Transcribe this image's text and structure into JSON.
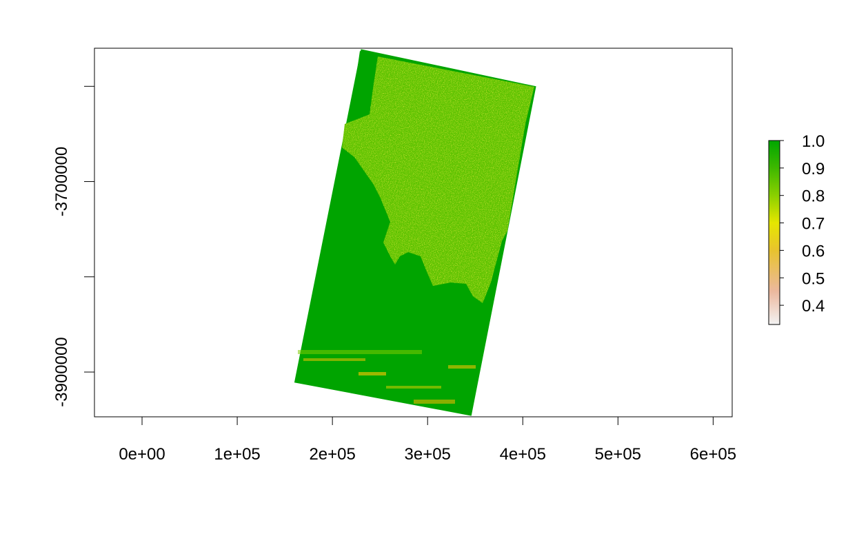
{
  "chart_data": {
    "type": "heatmap",
    "title": "",
    "xlabel": "",
    "ylabel": "",
    "xlim": [
      -50000,
      620000
    ],
    "ylim": [
      -3947000,
      -3560000
    ],
    "x_ticks": [
      0,
      100000,
      200000,
      300000,
      400000,
      500000,
      600000
    ],
    "x_tick_labels": [
      "0e+00",
      "1e+05",
      "2e+05",
      "3e+05",
      "4e+05",
      "5e+05",
      "6e+05"
    ],
    "y_ticks": [
      -3600000,
      -3700000,
      -3800000,
      -3900000
    ],
    "y_tick_labels": [
      "",
      "-3700000",
      "",
      "-3900000"
    ],
    "raster_footprint": {
      "corners": [
        {
          "x": 230000,
          "y": -3561000
        },
        {
          "x": 414000,
          "y": -3600000
        },
        {
          "x": 346000,
          "y": -3946000
        },
        {
          "x": 160000,
          "y": -3911000
        }
      ]
    },
    "legend": {
      "placement": "right",
      "min": 0.33,
      "max": 1.0,
      "ticks": [
        1.0,
        0.9,
        0.8,
        0.7,
        0.6,
        0.5,
        0.4
      ],
      "tick_labels": [
        "1.0",
        "0.9",
        "0.8",
        "0.7",
        "0.6",
        "0.5",
        "0.4"
      ],
      "colors": [
        {
          "value": 0.33,
          "color": "#f2f2f2"
        },
        {
          "value": 0.45,
          "color": "#ecb89e"
        },
        {
          "value": 0.6,
          "color": "#e8c32e"
        },
        {
          "value": 0.7,
          "color": "#e6e600"
        },
        {
          "value": 0.8,
          "color": "#8bd000"
        },
        {
          "value": 0.9,
          "color": "#3eb800"
        },
        {
          "value": 1.0,
          "color": "#00a600"
        }
      ]
    },
    "grid": false
  }
}
